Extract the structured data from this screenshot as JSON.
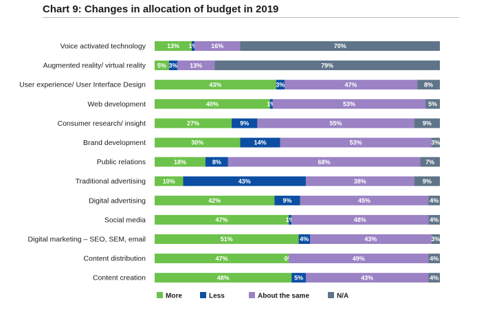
{
  "chart_data": {
    "type": "bar",
    "orientation": "horizontal",
    "stacked": true,
    "title": "Chart 9: Changes in allocation of budget in 2019",
    "categories": [
      "Voice activated technology",
      "Augmented reality/ virtual reality",
      "User experience/ User Interface Design",
      "Web development",
      "Consumer research/ insight",
      "Brand development",
      "Public relations",
      "Traditional advertising",
      "Digital advertising",
      "Social media",
      "Digital marketing – SEO, SEM, email",
      "Content distribution",
      "Content creation"
    ],
    "series": [
      {
        "name": "More",
        "color": "#6cc24a",
        "values": [
          13,
          5,
          43,
          40,
          27,
          30,
          18,
          10,
          42,
          47,
          51,
          47,
          48
        ]
      },
      {
        "name": "Less",
        "color": "#0b4ea2",
        "values": [
          1,
          3,
          3,
          1,
          9,
          14,
          8,
          43,
          9,
          1,
          4,
          0,
          5
        ]
      },
      {
        "name": "About the same",
        "color": "#9a82c4",
        "values": [
          16,
          13,
          47,
          53,
          55,
          53,
          68,
          38,
          45,
          48,
          43,
          49,
          43
        ]
      },
      {
        "name": "N/A",
        "color": "#5f7488",
        "values": [
          70,
          79,
          8,
          5,
          9,
          3,
          7,
          9,
          4,
          4,
          3,
          4,
          4
        ]
      }
    ],
    "labels": [
      [
        "13%",
        "1%",
        "16%",
        "70%"
      ],
      [
        "5%",
        "3%",
        "13%",
        "79%"
      ],
      [
        "43%",
        "3%",
        "47%",
        "8%"
      ],
      [
        "40%",
        "1%",
        "53%",
        "5%"
      ],
      [
        "27%",
        "9%",
        "55%",
        "9%"
      ],
      [
        "30%",
        "14%",
        "53%",
        "3%"
      ],
      [
        "18%",
        "8%",
        "68%",
        "7%"
      ],
      [
        "10%",
        "43%",
        "38%",
        "9%"
      ],
      [
        "42%",
        "9%",
        "45%",
        "4%"
      ],
      [
        "47%",
        "1%",
        "48%",
        "4%"
      ],
      [
        "51%",
        "4%",
        "43%",
        "3%"
      ],
      [
        "47%",
        "0%",
        "49%",
        "4%"
      ],
      [
        "48%",
        "5%",
        "43%",
        "4%"
      ]
    ],
    "legend_position": "bottom",
    "grid": false
  }
}
